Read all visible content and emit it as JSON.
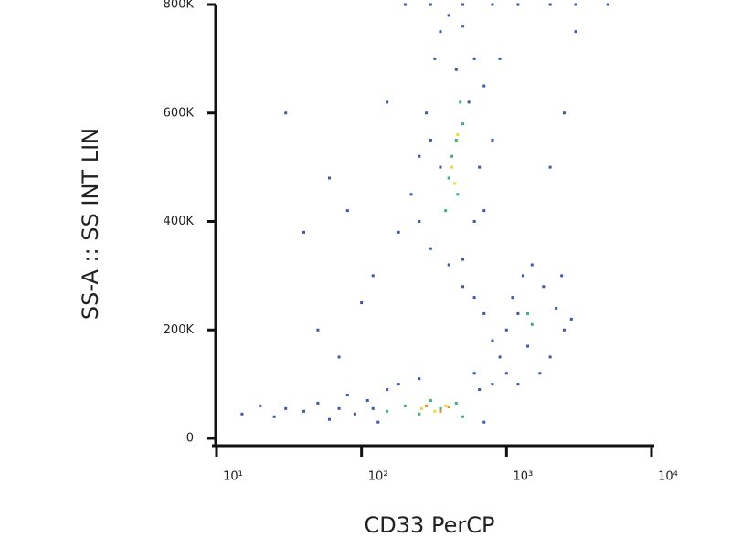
{
  "chart_data": {
    "type": "scatter",
    "x_label": "CD33 PerCP",
    "y_label": "SS-A :: SS INT LIN",
    "xscale": "log",
    "xlim": [
      10,
      10000
    ],
    "xticks": [
      {
        "value": 10,
        "label": "10¹"
      },
      {
        "value": 100,
        "label": "10²"
      },
      {
        "value": 1000,
        "label": "10³"
      },
      {
        "value": 10000,
        "label": "10⁴"
      }
    ],
    "ylim": [
      0,
      800000
    ],
    "yticks": [
      0,
      {
        "value": 200000,
        "label": "200K"
      },
      {
        "value": 400000,
        "label": "400K"
      },
      {
        "value": 600000,
        "label": "600K"
      },
      {
        "value": 800000,
        "label": "800K"
      }
    ],
    "series": [
      {
        "color": "#3a5aa8",
        "x": [
          15,
          20,
          25,
          30,
          40,
          50,
          60,
          70,
          80,
          90,
          110,
          130,
          150,
          180,
          250,
          700,
          650,
          600,
          800,
          120,
          250,
          220,
          300,
          280,
          320,
          350,
          400,
          500,
          600,
          700,
          650,
          600,
          500,
          400,
          350,
          300,
          700,
          250,
          450,
          550,
          800,
          900,
          180,
          800,
          900,
          1000,
          1200,
          700,
          600,
          500,
          1000,
          1100,
          1300,
          1500,
          1800,
          2200,
          2500,
          2000,
          1700,
          1400,
          1200,
          2400,
          2800,
          40,
          60,
          30,
          80,
          120,
          100,
          150,
          2000,
          2500,
          3000,
          50,
          70,
          200,
          300,
          500,
          800,
          1200,
          2000,
          3000,
          5000
        ],
        "y": [
          45000,
          60000,
          40000,
          55000,
          50000,
          65000,
          35000,
          55000,
          80000,
          45000,
          70000,
          30000,
          90000,
          100000,
          110000,
          30000,
          90000,
          120000,
          100000,
          55000,
          400000,
          450000,
          350000,
          600000,
          700000,
          750000,
          780000,
          760000,
          700000,
          650000,
          500000,
          400000,
          330000,
          320000,
          500000,
          550000,
          420000,
          520000,
          680000,
          620000,
          550000,
          700000,
          380000,
          180000,
          150000,
          120000,
          100000,
          230000,
          260000,
          280000,
          200000,
          260000,
          300000,
          320000,
          280000,
          240000,
          200000,
          150000,
          120000,
          170000,
          230000,
          300000,
          220000,
          380000,
          480000,
          600000,
          420000,
          300000,
          250000,
          620000,
          500000,
          600000,
          750000,
          200000,
          150000,
          800000,
          800000,
          800000,
          800000,
          800000,
          800000,
          800000,
          800000
        ]
      },
      {
        "color": "#3fae82",
        "x": [
          200,
          250,
          300,
          350,
          450,
          500,
          150,
          400,
          450,
          480,
          380,
          420,
          500,
          460,
          1500,
          1400
        ],
        "y": [
          60000,
          45000,
          70000,
          55000,
          65000,
          40000,
          50000,
          480000,
          550000,
          620000,
          420000,
          520000,
          580000,
          450000,
          210000,
          230000
        ]
      },
      {
        "color": "#e2dc3c",
        "x": [
          420,
          460,
          440,
          260,
          380,
          320
        ],
        "y": [
          500000,
          560000,
          470000,
          55000,
          60000,
          50000
        ]
      },
      {
        "color": "#f08a2c",
        "x": [
          280,
          350,
          400
        ],
        "y": [
          60000,
          50000,
          58000
        ]
      }
    ]
  }
}
